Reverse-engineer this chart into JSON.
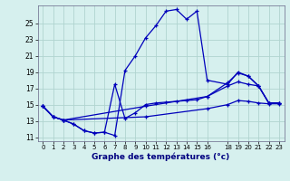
{
  "xlabel": "Graphe des températures (°c)",
  "background_color": "#d6f0ee",
  "grid_color": "#b0d4d0",
  "line_color": "#0000bb",
  "ylim": [
    10.5,
    27.2
  ],
  "xlim": [
    -0.5,
    23.5
  ],
  "yticks": [
    11,
    13,
    15,
    17,
    19,
    21,
    23,
    25
  ],
  "xticks": [
    0,
    1,
    2,
    3,
    4,
    5,
    6,
    7,
    8,
    9,
    10,
    11,
    12,
    13,
    14,
    15,
    16,
    18,
    19,
    20,
    21,
    22,
    23
  ],
  "line1_x": [
    0,
    1,
    2,
    3,
    4,
    5,
    6,
    7,
    8,
    9,
    10,
    11,
    12,
    13,
    14,
    15,
    16,
    18,
    19,
    20,
    21,
    22,
    23
  ],
  "line1_y": [
    14.8,
    13.5,
    13.1,
    12.6,
    11.8,
    11.5,
    11.6,
    11.2,
    19.2,
    21.0,
    23.2,
    24.7,
    26.5,
    26.7,
    25.5,
    26.5,
    18.0,
    17.5,
    19.0,
    18.5,
    17.3,
    15.2,
    15.2
  ],
  "line2_x": [
    0,
    1,
    2,
    3,
    4,
    5,
    6,
    7,
    8,
    9,
    10,
    11,
    12,
    13,
    14,
    15,
    16,
    18,
    19,
    20,
    21,
    22,
    23
  ],
  "line2_y": [
    14.8,
    13.5,
    13.1,
    12.6,
    11.8,
    11.5,
    11.6,
    17.5,
    13.3,
    14.0,
    15.0,
    15.2,
    15.3,
    15.4,
    15.5,
    15.6,
    16.0,
    17.3,
    17.8,
    17.5,
    17.3,
    15.2,
    15.2
  ],
  "line3_x": [
    0,
    1,
    2,
    10,
    16,
    18,
    19,
    20,
    21,
    22,
    23
  ],
  "line3_y": [
    14.8,
    13.5,
    13.1,
    14.8,
    16.0,
    17.7,
    18.9,
    18.5,
    17.3,
    15.2,
    15.2
  ],
  "line4_x": [
    0,
    1,
    2,
    10,
    16,
    18,
    19,
    20,
    21,
    22,
    23
  ],
  "line4_y": [
    14.8,
    13.5,
    13.1,
    13.5,
    14.5,
    15.0,
    15.5,
    15.4,
    15.2,
    15.1,
    15.1
  ]
}
